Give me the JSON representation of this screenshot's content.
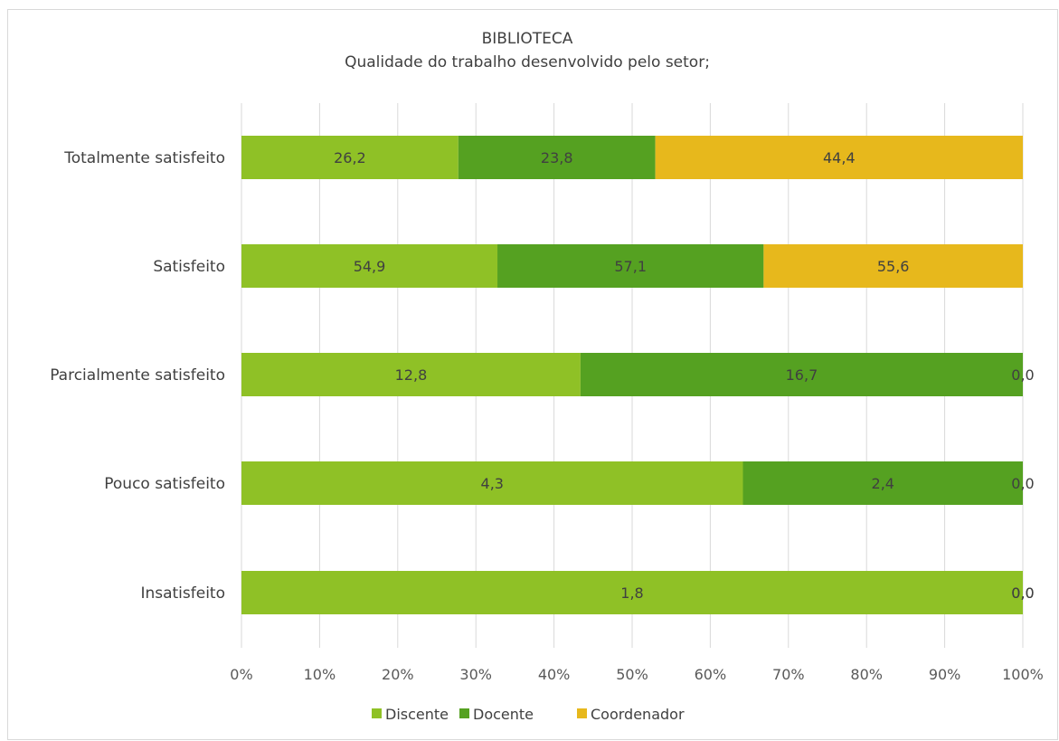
{
  "chart_data": {
    "type": "bar",
    "orientation": "horizontal",
    "stacking": "percent",
    "title": "BIBLIOTECA",
    "subtitle": "Qualidade do trabalho desenvolvido pelo setor;",
    "categories": [
      "Totalmente satisfeito",
      "Satisfeito",
      "Parcialmente satisfeito",
      "Pouco satisfeito",
      "Insatisfeito"
    ],
    "series": [
      {
        "name": "Discente",
        "color": "#8fc126",
        "values": [
          "26,2",
          "54,9",
          "12,8",
          "4,3",
          "1,8"
        ]
      },
      {
        "name": "Docente",
        "color": "#55a121",
        "values": [
          "23,8",
          "57,1",
          "16,7",
          "2,4",
          "0,0"
        ]
      },
      {
        "name": "Coordenador",
        "color": "#e7b81c",
        "values": [
          "44,4",
          "55,6",
          "0,0",
          "0,0",
          "0,0"
        ]
      }
    ],
    "x_ticks": [
      "0%",
      "10%",
      "20%",
      "30%",
      "40%",
      "50%",
      "60%",
      "70%",
      "80%",
      "90%",
      "100%"
    ],
    "xlim": [
      0,
      100
    ],
    "grid": true,
    "legend": "bottom"
  }
}
